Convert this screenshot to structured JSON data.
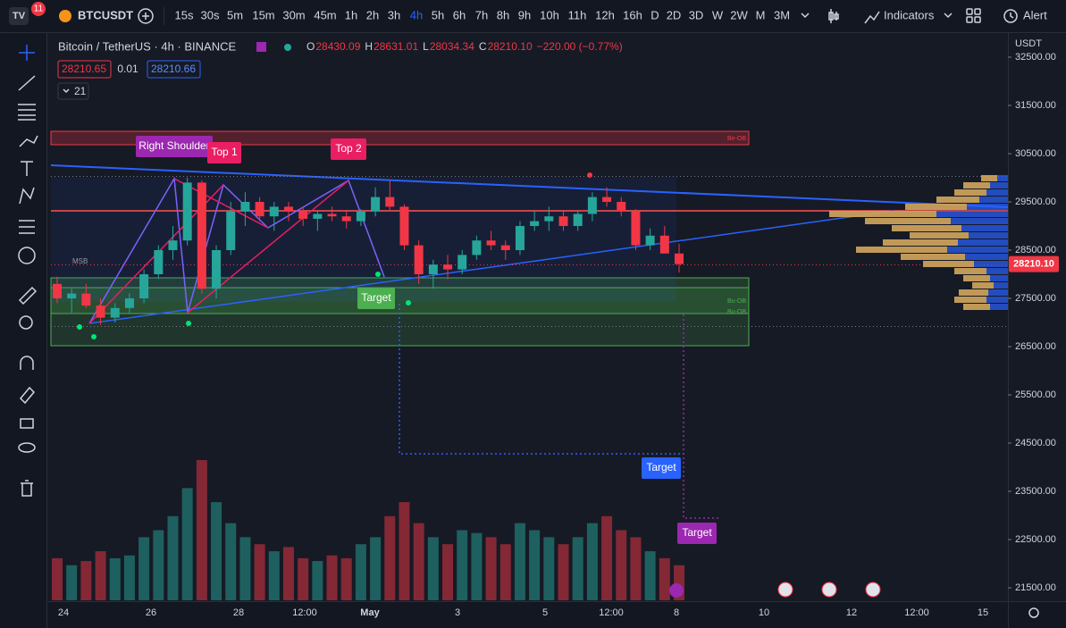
{
  "topbar": {
    "badge": "11",
    "symbol": "BTCUSDT",
    "intervals": [
      "15s",
      "30s",
      "5m",
      "15m",
      "30m",
      "45m",
      "1h",
      "2h",
      "3h",
      "4h",
      "5h",
      "6h",
      "7h",
      "8h",
      "9h",
      "10h",
      "11h",
      "12h",
      "16h",
      "D",
      "2D",
      "3D",
      "W",
      "2W",
      "M",
      "3M"
    ],
    "active_interval": "4h",
    "indicators": "Indicators",
    "alert": "Alert"
  },
  "legend": {
    "title": "Bitcoin / TetherUS · 4h · BINANCE",
    "ohlc": [
      {
        "label": "O",
        "value": "28430.09"
      },
      {
        "label": "H",
        "value": "28631.01"
      },
      {
        "label": "L",
        "value": "28034.34"
      },
      {
        "label": "C",
        "value": "28210.10"
      }
    ],
    "change": "−220.00 (−0.77%)",
    "bid": "28210.65",
    "spread": "0.01",
    "ask": "28210.66",
    "collapse": "21"
  },
  "chart": {
    "currency": "USDT",
    "price_ticks": [
      {
        "value": 32500,
        "label": "32500.00"
      },
      {
        "value": 31500,
        "label": "31500.00"
      },
      {
        "value": 30500,
        "label": "30500.00"
      },
      {
        "value": 29500,
        "label": "29500.00"
      },
      {
        "value": 28500,
        "label": "28500.00"
      },
      {
        "value": 27500,
        "label": "27500.00"
      },
      {
        "value": 26500,
        "label": "26500.00"
      },
      {
        "value": 25500,
        "label": "25500.00"
      },
      {
        "value": 24500,
        "label": "24500.00"
      },
      {
        "value": 23500,
        "label": "23500.00"
      },
      {
        "value": 22500,
        "label": "22500.00"
      },
      {
        "value": 21500,
        "label": "21500.00"
      }
    ],
    "last_price": {
      "value": 28210.1,
      "label": "28210.10"
    },
    "time_labels": [
      "24",
      "26",
      "28",
      "12:00",
      "May",
      "3",
      "5",
      "12:00",
      "8",
      "10",
      "12",
      "12:00",
      "15"
    ],
    "candles": {
      "open": [
        27800,
        27500,
        27600,
        27350,
        27100,
        27300,
        27500,
        28000,
        28500,
        28700,
        29900,
        27700,
        28500,
        29300,
        29500,
        29200,
        29400,
        29300,
        29150,
        29250,
        29200,
        29100,
        29300,
        29600,
        29400,
        28600,
        28000,
        28200,
        28100,
        28400,
        28700,
        28600,
        28500,
        29000,
        29100,
        29200,
        29000,
        29250,
        29600,
        29500,
        29300,
        28600,
        28800,
        28430
      ],
      "high": [
        27950,
        27700,
        27800,
        27500,
        27400,
        27600,
        28100,
        28600,
        29000,
        30000,
        29950,
        28600,
        29500,
        29700,
        29600,
        29500,
        29500,
        29400,
        29300,
        29400,
        29300,
        29350,
        29800,
        29950,
        29450,
        28700,
        28300,
        28400,
        28500,
        28800,
        28900,
        28700,
        29100,
        29300,
        29400,
        29300,
        29300,
        29700,
        29800,
        29600,
        29350,
        28950,
        29000,
        28631
      ],
      "low": [
        27400,
        27200,
        27300,
        26950,
        27000,
        27200,
        27400,
        27900,
        28300,
        28600,
        27600,
        27500,
        28400,
        29000,
        29100,
        28900,
        29100,
        29000,
        28900,
        29100,
        28950,
        29000,
        29200,
        29300,
        28500,
        27800,
        27700,
        27900,
        28000,
        28300,
        28500,
        28300,
        28400,
        28900,
        28900,
        28900,
        28900,
        29100,
        29400,
        29200,
        28500,
        28500,
        28700,
        28034
      ],
      "close": [
        27500,
        27600,
        27350,
        27100,
        27300,
        27500,
        28000,
        28500,
        28700,
        29900,
        27700,
        28500,
        29300,
        29500,
        29200,
        29400,
        29300,
        29150,
        29250,
        29200,
        29100,
        29300,
        29600,
        29400,
        28600,
        28000,
        28200,
        28100,
        28400,
        28700,
        28600,
        28500,
        29000,
        29100,
        29200,
        29000,
        29250,
        29600,
        29500,
        29300,
        28600,
        28800,
        28430,
        28210
      ]
    },
    "volume": [
      30,
      25,
      28,
      35,
      30,
      32,
      45,
      50,
      60,
      80,
      100,
      70,
      55,
      45,
      40,
      35,
      38,
      30,
      28,
      32,
      30,
      40,
      45,
      60,
      70,
      55,
      45,
      40,
      50,
      48,
      45,
      40,
      55,
      50,
      45,
      40,
      45,
      55,
      60,
      50,
      45,
      35,
      30,
      25
    ],
    "annotations": {
      "right_shoulder": "Right Shoulder",
      "top1": "Top 1",
      "top2": "Top 2",
      "target1": "Target",
      "target2": "Target",
      "target3": "Target",
      "msb": "MSB",
      "be_ob": "Be-OB",
      "bu_ob1": "Bu-OB",
      "bu_ob2": "Bu-OB"
    }
  }
}
